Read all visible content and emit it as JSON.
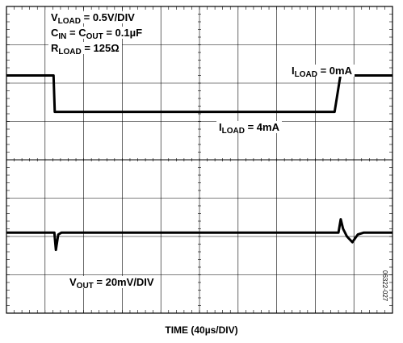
{
  "chart_data": {
    "type": "line",
    "xlabel": "TIME (40µs/DIV)",
    "divisions": {
      "x": 10,
      "y": 8
    },
    "grid": true,
    "series": [
      {
        "name": "I_LOAD",
        "scale": "0.5V/DIV",
        "x_div": [
          0,
          1.22,
          1.25,
          8.5,
          8.65,
          10
        ],
        "y_div": [
          6.2,
          6.2,
          5.25,
          5.25,
          6.2,
          6.2
        ]
      },
      {
        "name": "V_OUT",
        "scale": "20mV/DIV",
        "x_div": [
          0,
          1.24,
          1.28,
          1.34,
          1.42,
          8.6,
          8.66,
          8.72,
          8.82,
          8.96,
          9.1,
          9.25,
          10
        ],
        "y_div": [
          2.1,
          2.1,
          1.65,
          2.05,
          2.1,
          2.1,
          2.45,
          2.2,
          2.0,
          1.85,
          2.05,
          2.1,
          2.1
        ]
      }
    ],
    "annotations": {
      "conditions": {
        "vload": {
          "main": "V",
          "sub": "LOAD",
          "rest": " = 0.5V/DIV"
        },
        "cin_cout": {
          "main1": "C",
          "sub1": "IN",
          "mid": " = C",
          "sub2": "OUT",
          "rest": " = 0.1µF"
        },
        "rload": {
          "main": "R",
          "sub": "LOAD",
          "rest": " = 125Ω"
        }
      },
      "iload_0": {
        "main": "I",
        "sub": "LOAD",
        "rest": " = 0mA"
      },
      "iload_4": {
        "main": "I",
        "sub": "LOAD",
        "rest": " = 4mA"
      },
      "vout": {
        "main": "V",
        "sub": "OUT",
        "rest": " = 20mV/DIV"
      }
    },
    "figure_code": "06322-027"
  }
}
